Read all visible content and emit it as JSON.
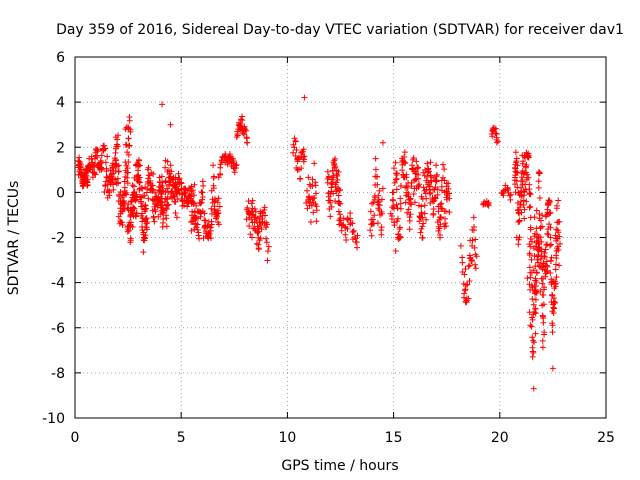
{
  "chart_data": {
    "type": "scatter",
    "title": "Day 359 of 2016, Sidereal Day-to-day VTEC variation (SDTVAR) for receiver dav1",
    "xlabel": "GPS time / hours",
    "ylabel": "SDTVAR / TECUs",
    "xlim": [
      0,
      25
    ],
    "ylim": [
      -10,
      6
    ],
    "xticks": [
      0,
      5,
      10,
      15,
      20,
      25
    ],
    "yticks": [
      -10,
      -8,
      -6,
      -4,
      -2,
      0,
      2,
      4,
      6
    ],
    "xtick_labels": [
      "0",
      "5",
      "10",
      "15",
      "20",
      "25"
    ],
    "ytick_labels": [
      "-10",
      "-8",
      "-6",
      "-4",
      "-2",
      "0",
      "2",
      "4",
      "6"
    ],
    "grid": true,
    "marker": "+",
    "color": "#ff0000",
    "clusters": [
      {
        "x0": 0.15,
        "x1": 0.6,
        "ymin": 0.2,
        "ymax": 1.8,
        "center": 0.9,
        "n": 60
      },
      {
        "x0": 0.6,
        "x1": 1.4,
        "ymin": 0.3,
        "ymax": 2.1,
        "center": 1.3,
        "n": 60
      },
      {
        "x0": 1.4,
        "x1": 1.9,
        "ymin": -0.9,
        "ymax": 2.3,
        "center": 0.7,
        "n": 40
      },
      {
        "x0": 1.9,
        "x1": 2.6,
        "ymin": -1.6,
        "ymax": 3.6,
        "center": 0.6,
        "n": 80
      },
      {
        "x0": 2.5,
        "x1": 3.4,
        "ymin": -2.8,
        "ymax": 1.5,
        "center": -0.7,
        "n": 120
      },
      {
        "x0": 3.4,
        "x1": 4.1,
        "ymin": -1.3,
        "ymax": 2.1,
        "center": 0.3,
        "n": 60
      },
      {
        "x0": 4.0,
        "x1": 4.8,
        "ymin": -2.2,
        "ymax": 2.0,
        "center": -0.2,
        "n": 90
      },
      {
        "x0": 4.8,
        "x1": 5.6,
        "ymin": -1.3,
        "ymax": 1.3,
        "center": 0.0,
        "n": 60
      },
      {
        "x0": 5.5,
        "x1": 6.8,
        "ymin": -2.1,
        "ymax": 0.9,
        "center": -0.8,
        "n": 100
      },
      {
        "x0": 6.8,
        "x1": 7.6,
        "ymin": 0.2,
        "ymax": 1.7,
        "center": 0.9,
        "n": 40
      },
      {
        "x0": 7.6,
        "x1": 8.1,
        "ymin": 2.1,
        "ymax": 3.6,
        "center": 2.8,
        "n": 30
      },
      {
        "x0": 8.1,
        "x1": 8.7,
        "ymin": -2.6,
        "ymax": 1.0,
        "center": -0.8,
        "n": 40
      },
      {
        "x0": 8.6,
        "x1": 9.1,
        "ymin": -3.3,
        "ymax": 0.4,
        "center": -1.8,
        "n": 30
      },
      {
        "x0": 10.3,
        "x1": 10.8,
        "ymin": 0.5,
        "ymax": 3.1,
        "center": 1.6,
        "n": 30
      },
      {
        "x0": 10.9,
        "x1": 11.4,
        "ymin": -2.4,
        "ymax": 2.1,
        "center": 0.2,
        "n": 30
      },
      {
        "x0": 11.9,
        "x1": 12.5,
        "ymin": -3.2,
        "ymax": 1.5,
        "center": -0.3,
        "n": 60
      },
      {
        "x0": 12.5,
        "x1": 13.3,
        "ymin": -2.6,
        "ymax": -0.5,
        "center": -1.4,
        "n": 30
      },
      {
        "x0": 13.9,
        "x1": 14.5,
        "ymin": -2.7,
        "ymax": 2.2,
        "center": -0.2,
        "n": 40
      },
      {
        "x0": 14.9,
        "x1": 17.6,
        "ymin": -2.1,
        "ymax": 1.9,
        "center": -0.4,
        "n": 220
      },
      {
        "x0": 18.2,
        "x1": 18.9,
        "ymin": -4.9,
        "ymax": -0.4,
        "center": -2.8,
        "n": 40
      },
      {
        "x0": 19.2,
        "x1": 19.5,
        "ymin": -1.0,
        "ymax": -0.3,
        "center": -0.6,
        "n": 10
      },
      {
        "x0": 19.6,
        "x1": 19.9,
        "ymin": 1.8,
        "ymax": 3.1,
        "center": 2.4,
        "n": 15
      },
      {
        "x0": 20.1,
        "x1": 20.5,
        "ymin": -0.6,
        "ymax": 0.5,
        "center": 0.0,
        "n": 15
      },
      {
        "x0": 20.7,
        "x1": 21.4,
        "ymin": -3.0,
        "ymax": 1.8,
        "center": -0.3,
        "n": 90
      },
      {
        "x0": 21.4,
        "x1": 22.0,
        "ymin": -8.7,
        "ymax": 1.0,
        "center": -2.8,
        "n": 110
      },
      {
        "x0": 22.0,
        "x1": 22.8,
        "ymin": -7.9,
        "ymax": -0.3,
        "center": -1.8,
        "n": 110
      }
    ],
    "points": [
      {
        "x": 4.1,
        "y": 3.9
      },
      {
        "x": 10.8,
        "y": 4.2
      },
      {
        "x": 2.5,
        "y": 2.9
      },
      {
        "x": 4.5,
        "y": 3.0
      },
      {
        "x": 6.5,
        "y": 1.2
      },
      {
        "x": 14.5,
        "y": 2.2
      },
      {
        "x": 15.1,
        "y": -2.6
      },
      {
        "x": 17.0,
        "y": 1.2
      },
      {
        "x": 20.8,
        "y": -2.0
      },
      {
        "x": 21.3,
        "y": -3.8
      },
      {
        "x": 21.6,
        "y": -8.7
      },
      {
        "x": 22.5,
        "y": -7.8
      }
    ]
  }
}
